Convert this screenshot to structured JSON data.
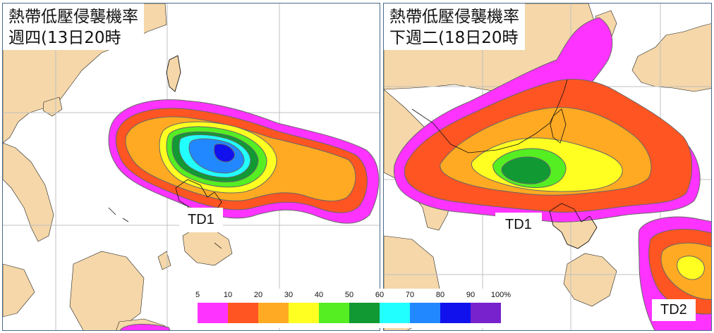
{
  "panels": [
    {
      "title": "熱帶低壓侵襲機率",
      "subtitle": "週四(13日20時",
      "labels": [
        "TD1"
      ]
    },
    {
      "title": "熱帶低壓侵襲機率",
      "subtitle": "下週二(18日20時",
      "labels": [
        "TD1",
        "TD2"
      ]
    }
  ],
  "legend": {
    "ticks": [
      "5",
      "10",
      "20",
      "30",
      "40",
      "50",
      "60",
      "70",
      "80",
      "90",
      "100%"
    ],
    "colors": [
      "#ff33ff",
      "#ff5522",
      "#ffaa22",
      "#ffff22",
      "#55ee22",
      "#119933",
      "#22ffff",
      "#2288ff",
      "#1111ee",
      "#7722cc"
    ]
  },
  "map_colors": {
    "land": "#f5d7a9",
    "sea": "#ffffff",
    "grid": "#c0c0c0",
    "coast": "#000000"
  }
}
